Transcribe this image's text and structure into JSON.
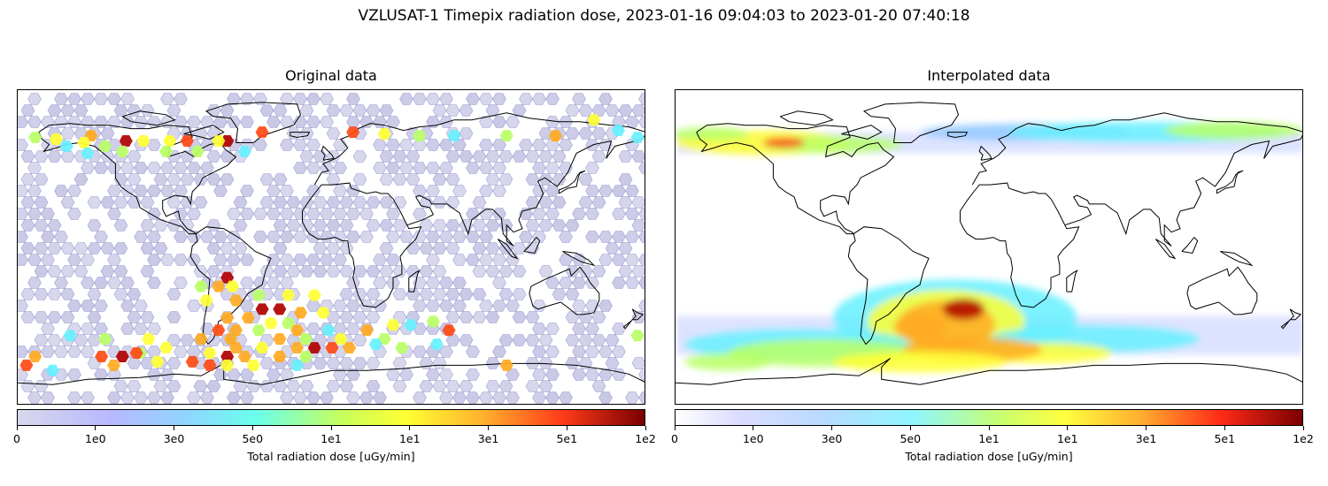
{
  "figure": {
    "title": "VZLUSAT-1 Timepix radiation dose, 2023-01-16 09:04:03 to 2023-01-20 07:40:18"
  },
  "panels": [
    {
      "title": "Original data",
      "colorbar": {
        "ticks": [
          "0",
          "1e0",
          "3e0",
          "5e0",
          "1e1",
          "1e1",
          "3e1",
          "5e1",
          "1e2"
        ],
        "label": "Total radiation dose [uGy/min]"
      }
    },
    {
      "title": "Interpolated data",
      "colorbar": {
        "ticks": [
          "0",
          "1e0",
          "3e0",
          "5e0",
          "1e1",
          "1e1",
          "3e1",
          "5e1",
          "1e2"
        ],
        "label": "Total radiation dose [uGy/min]"
      }
    }
  ],
  "map_data": {
    "projection": "equirectangular",
    "lon_range": [
      -180,
      180
    ],
    "lat_range": [
      -90,
      90
    ],
    "hot_cells": [
      {
        "lon": -118,
        "lat": 61,
        "dose": 80
      },
      {
        "lon": -60,
        "lat": 61,
        "dose": 80
      },
      {
        "lon": -83,
        "lat": 61,
        "dose": 60
      },
      {
        "lon": -138,
        "lat": 64,
        "dose": 40
      },
      {
        "lon": -142,
        "lat": 60,
        "dose": 20
      },
      {
        "lon": -108,
        "lat": 61,
        "dose": 20
      },
      {
        "lon": -93,
        "lat": 61,
        "dose": 20
      },
      {
        "lon": -65,
        "lat": 61,
        "dose": 20
      },
      {
        "lon": -40,
        "lat": 66,
        "dose": 60
      },
      {
        "lon": 12,
        "lat": 66,
        "dose": 60
      },
      {
        "lon": 30,
        "lat": 65,
        "dose": 20
      },
      {
        "lon": 50,
        "lat": 64,
        "dose": 10
      },
      {
        "lon": 70,
        "lat": 64,
        "dose": 5
      },
      {
        "lon": 100,
        "lat": 64,
        "dose": 10
      },
      {
        "lon": 128,
        "lat": 64,
        "dose": 30
      },
      {
        "lon": 150,
        "lat": 73,
        "dose": 20
      },
      {
        "lon": 164,
        "lat": 67,
        "dose": 5
      },
      {
        "lon": 175,
        "lat": 63,
        "dose": 5
      },
      {
        "lon": -170,
        "lat": 63,
        "dose": 10
      },
      {
        "lon": -158,
        "lat": 62,
        "dose": 20
      },
      {
        "lon": -130,
        "lat": 58,
        "dose": 10
      },
      {
        "lon": -152,
        "lat": 58,
        "dose": 5
      },
      {
        "lon": -77,
        "lat": 55,
        "dose": 10
      },
      {
        "lon": -50,
        "lat": 55,
        "dose": 5
      },
      {
        "lon": -140,
        "lat": 54,
        "dose": 5
      },
      {
        "lon": -120,
        "lat": 55,
        "dose": 10
      },
      {
        "lon": -95,
        "lat": 55,
        "dose": 10
      },
      {
        "lon": -75,
        "lat": -22,
        "dose": 10
      },
      {
        "lon": -60,
        "lat": -17,
        "dose": 70
      },
      {
        "lon": -65,
        "lat": -22,
        "dose": 30
      },
      {
        "lon": -57,
        "lat": -22,
        "dose": 20
      },
      {
        "lon": -42,
        "lat": -27,
        "dose": 10
      },
      {
        "lon": -25,
        "lat": -27,
        "dose": 20
      },
      {
        "lon": -10,
        "lat": -27,
        "dose": 20
      },
      {
        "lon": -55,
        "lat": -30,
        "dose": 40
      },
      {
        "lon": -72,
        "lat": -30,
        "dose": 20
      },
      {
        "lon": -40,
        "lat": -35,
        "dose": 80
      },
      {
        "lon": -30,
        "lat": -35,
        "dose": 70
      },
      {
        "lon": -18,
        "lat": -37,
        "dose": 30
      },
      {
        "lon": -5,
        "lat": -37,
        "dose": 20
      },
      {
        "lon": -60,
        "lat": -40,
        "dose": 40
      },
      {
        "lon": -48,
        "lat": -40,
        "dose": 30
      },
      {
        "lon": -35,
        "lat": -43,
        "dose": 20
      },
      {
        "lon": -25,
        "lat": -43,
        "dose": 10
      },
      {
        "lon": -65,
        "lat": -47,
        "dose": 60
      },
      {
        "lon": -55,
        "lat": -47,
        "dose": 30
      },
      {
        "lon": -42,
        "lat": -47,
        "dose": 10
      },
      {
        "lon": -20,
        "lat": -47,
        "dose": 30
      },
      {
        "lon": -2,
        "lat": -47,
        "dose": 5
      },
      {
        "lon": 20,
        "lat": -47,
        "dose": 30
      },
      {
        "lon": 35,
        "lat": -44,
        "dose": 20
      },
      {
        "lon": 45,
        "lat": -44,
        "dose": 5
      },
      {
        "lon": 58,
        "lat": -42,
        "dose": 10
      },
      {
        "lon": 67,
        "lat": -47,
        "dose": 60
      },
      {
        "lon": -75,
        "lat": -52,
        "dose": 30
      },
      {
        "lon": -58,
        "lat": -52,
        "dose": 40
      },
      {
        "lon": -30,
        "lat": -52,
        "dose": 30
      },
      {
        "lon": -15,
        "lat": -52,
        "dose": 10
      },
      {
        "lon": 5,
        "lat": -52,
        "dose": 20
      },
      {
        "lon": 30,
        "lat": -52,
        "dose": 10
      },
      {
        "lon": -150,
        "lat": -50,
        "dose": 5
      },
      {
        "lon": -130,
        "lat": -52,
        "dose": 10
      },
      {
        "lon": -105,
        "lat": -52,
        "dose": 20
      },
      {
        "lon": -95,
        "lat": -57,
        "dose": 20
      },
      {
        "lon": -110,
        "lat": -60,
        "dose": 10
      },
      {
        "lon": -40,
        "lat": -57,
        "dose": 20
      },
      {
        "lon": -20,
        "lat": -57,
        "dose": 40
      },
      {
        "lon": -10,
        "lat": -57,
        "dose": 80
      },
      {
        "lon": 0,
        "lat": -57,
        "dose": 60
      },
      {
        "lon": 10,
        "lat": -57,
        "dose": 40
      },
      {
        "lon": -55,
        "lat": -57,
        "dose": 30
      },
      {
        "lon": -70,
        "lat": -60,
        "dose": 20
      },
      {
        "lon": -60,
        "lat": -62,
        "dose": 70
      },
      {
        "lon": -50,
        "lat": -62,
        "dose": 40
      },
      {
        "lon": -30,
        "lat": -62,
        "dose": 30
      },
      {
        "lon": -15,
        "lat": -62,
        "dose": 10
      },
      {
        "lon": -170,
        "lat": -62,
        "dose": 40
      },
      {
        "lon": -175,
        "lat": -67,
        "dose": 60
      },
      {
        "lon": -132,
        "lat": -62,
        "dose": 60
      },
      {
        "lon": -120,
        "lat": -62,
        "dose": 70
      },
      {
        "lon": -112,
        "lat": -60,
        "dose": 60
      },
      {
        "lon": -125,
        "lat": -67,
        "dose": 30
      },
      {
        "lon": -100,
        "lat": -65,
        "dose": 20
      },
      {
        "lon": -80,
        "lat": -65,
        "dose": 60
      },
      {
        "lon": -70,
        "lat": -67,
        "dose": 60
      },
      {
        "lon": -60,
        "lat": -67,
        "dose": 20
      },
      {
        "lon": -45,
        "lat": -67,
        "dose": 20
      },
      {
        "lon": -20,
        "lat": -67,
        "dose": 5
      },
      {
        "lon": 25,
        "lat": -55,
        "dose": 5
      },
      {
        "lon": 40,
        "lat": -57,
        "dose": 10
      },
      {
        "lon": 60,
        "lat": -55,
        "dose": 5
      },
      {
        "lon": 100,
        "lat": -67,
        "dose": 30
      },
      {
        "lon": -160,
        "lat": -70,
        "dose": 5
      },
      {
        "lon": 175,
        "lat": -50,
        "dose": 10
      }
    ],
    "interpolated_regions": [
      {
        "lon": -130,
        "lat": 60,
        "rx": 50,
        "ry": 7,
        "dose": 20
      },
      {
        "lon": -90,
        "lat": 59,
        "rx": 40,
        "ry": 5,
        "dose": 10
      },
      {
        "lon": -118,
        "lat": 60,
        "rx": 12,
        "ry": 3,
        "dose": 60
      },
      {
        "lon": -160,
        "lat": 65,
        "rx": 22,
        "ry": 4,
        "dose": 10
      },
      {
        "lon": 20,
        "lat": 66,
        "rx": 60,
        "ry": 5,
        "dose": 3
      },
      {
        "lon": 90,
        "lat": 66,
        "rx": 80,
        "ry": 6,
        "dose": 5
      },
      {
        "lon": 140,
        "lat": 67,
        "rx": 40,
        "ry": 5,
        "dose": 10
      },
      {
        "lon": -20,
        "lat": -40,
        "rx": 70,
        "ry": 22,
        "dose": 5
      },
      {
        "lon": -25,
        "lat": -42,
        "rx": 45,
        "ry": 18,
        "dose": 12
      },
      {
        "lon": -25,
        "lat": -44,
        "rx": 28,
        "ry": 14,
        "dose": 30
      },
      {
        "lon": -15,
        "lat": -35,
        "rx": 12,
        "ry": 6,
        "dose": 70
      },
      {
        "lon": -40,
        "lat": -45,
        "rx": 15,
        "ry": 8,
        "dose": 35
      },
      {
        "lon": -110,
        "lat": -55,
        "rx": 65,
        "ry": 9,
        "dose": 5
      },
      {
        "lon": -95,
        "lat": -60,
        "rx": 55,
        "ry": 8,
        "dose": 10
      },
      {
        "lon": 60,
        "lat": -52,
        "rx": 60,
        "ry": 8,
        "dose": 5
      },
      {
        "lon": 30,
        "lat": -60,
        "rx": 40,
        "ry": 6,
        "dose": 12
      },
      {
        "lon": -10,
        "lat": -58,
        "rx": 40,
        "ry": 7,
        "dose": 25
      },
      {
        "lon": -40,
        "lat": -65,
        "rx": 50,
        "ry": 6,
        "dose": 12
      },
      {
        "lon": -150,
        "lat": -65,
        "rx": 25,
        "ry": 5,
        "dose": 10
      }
    ]
  }
}
